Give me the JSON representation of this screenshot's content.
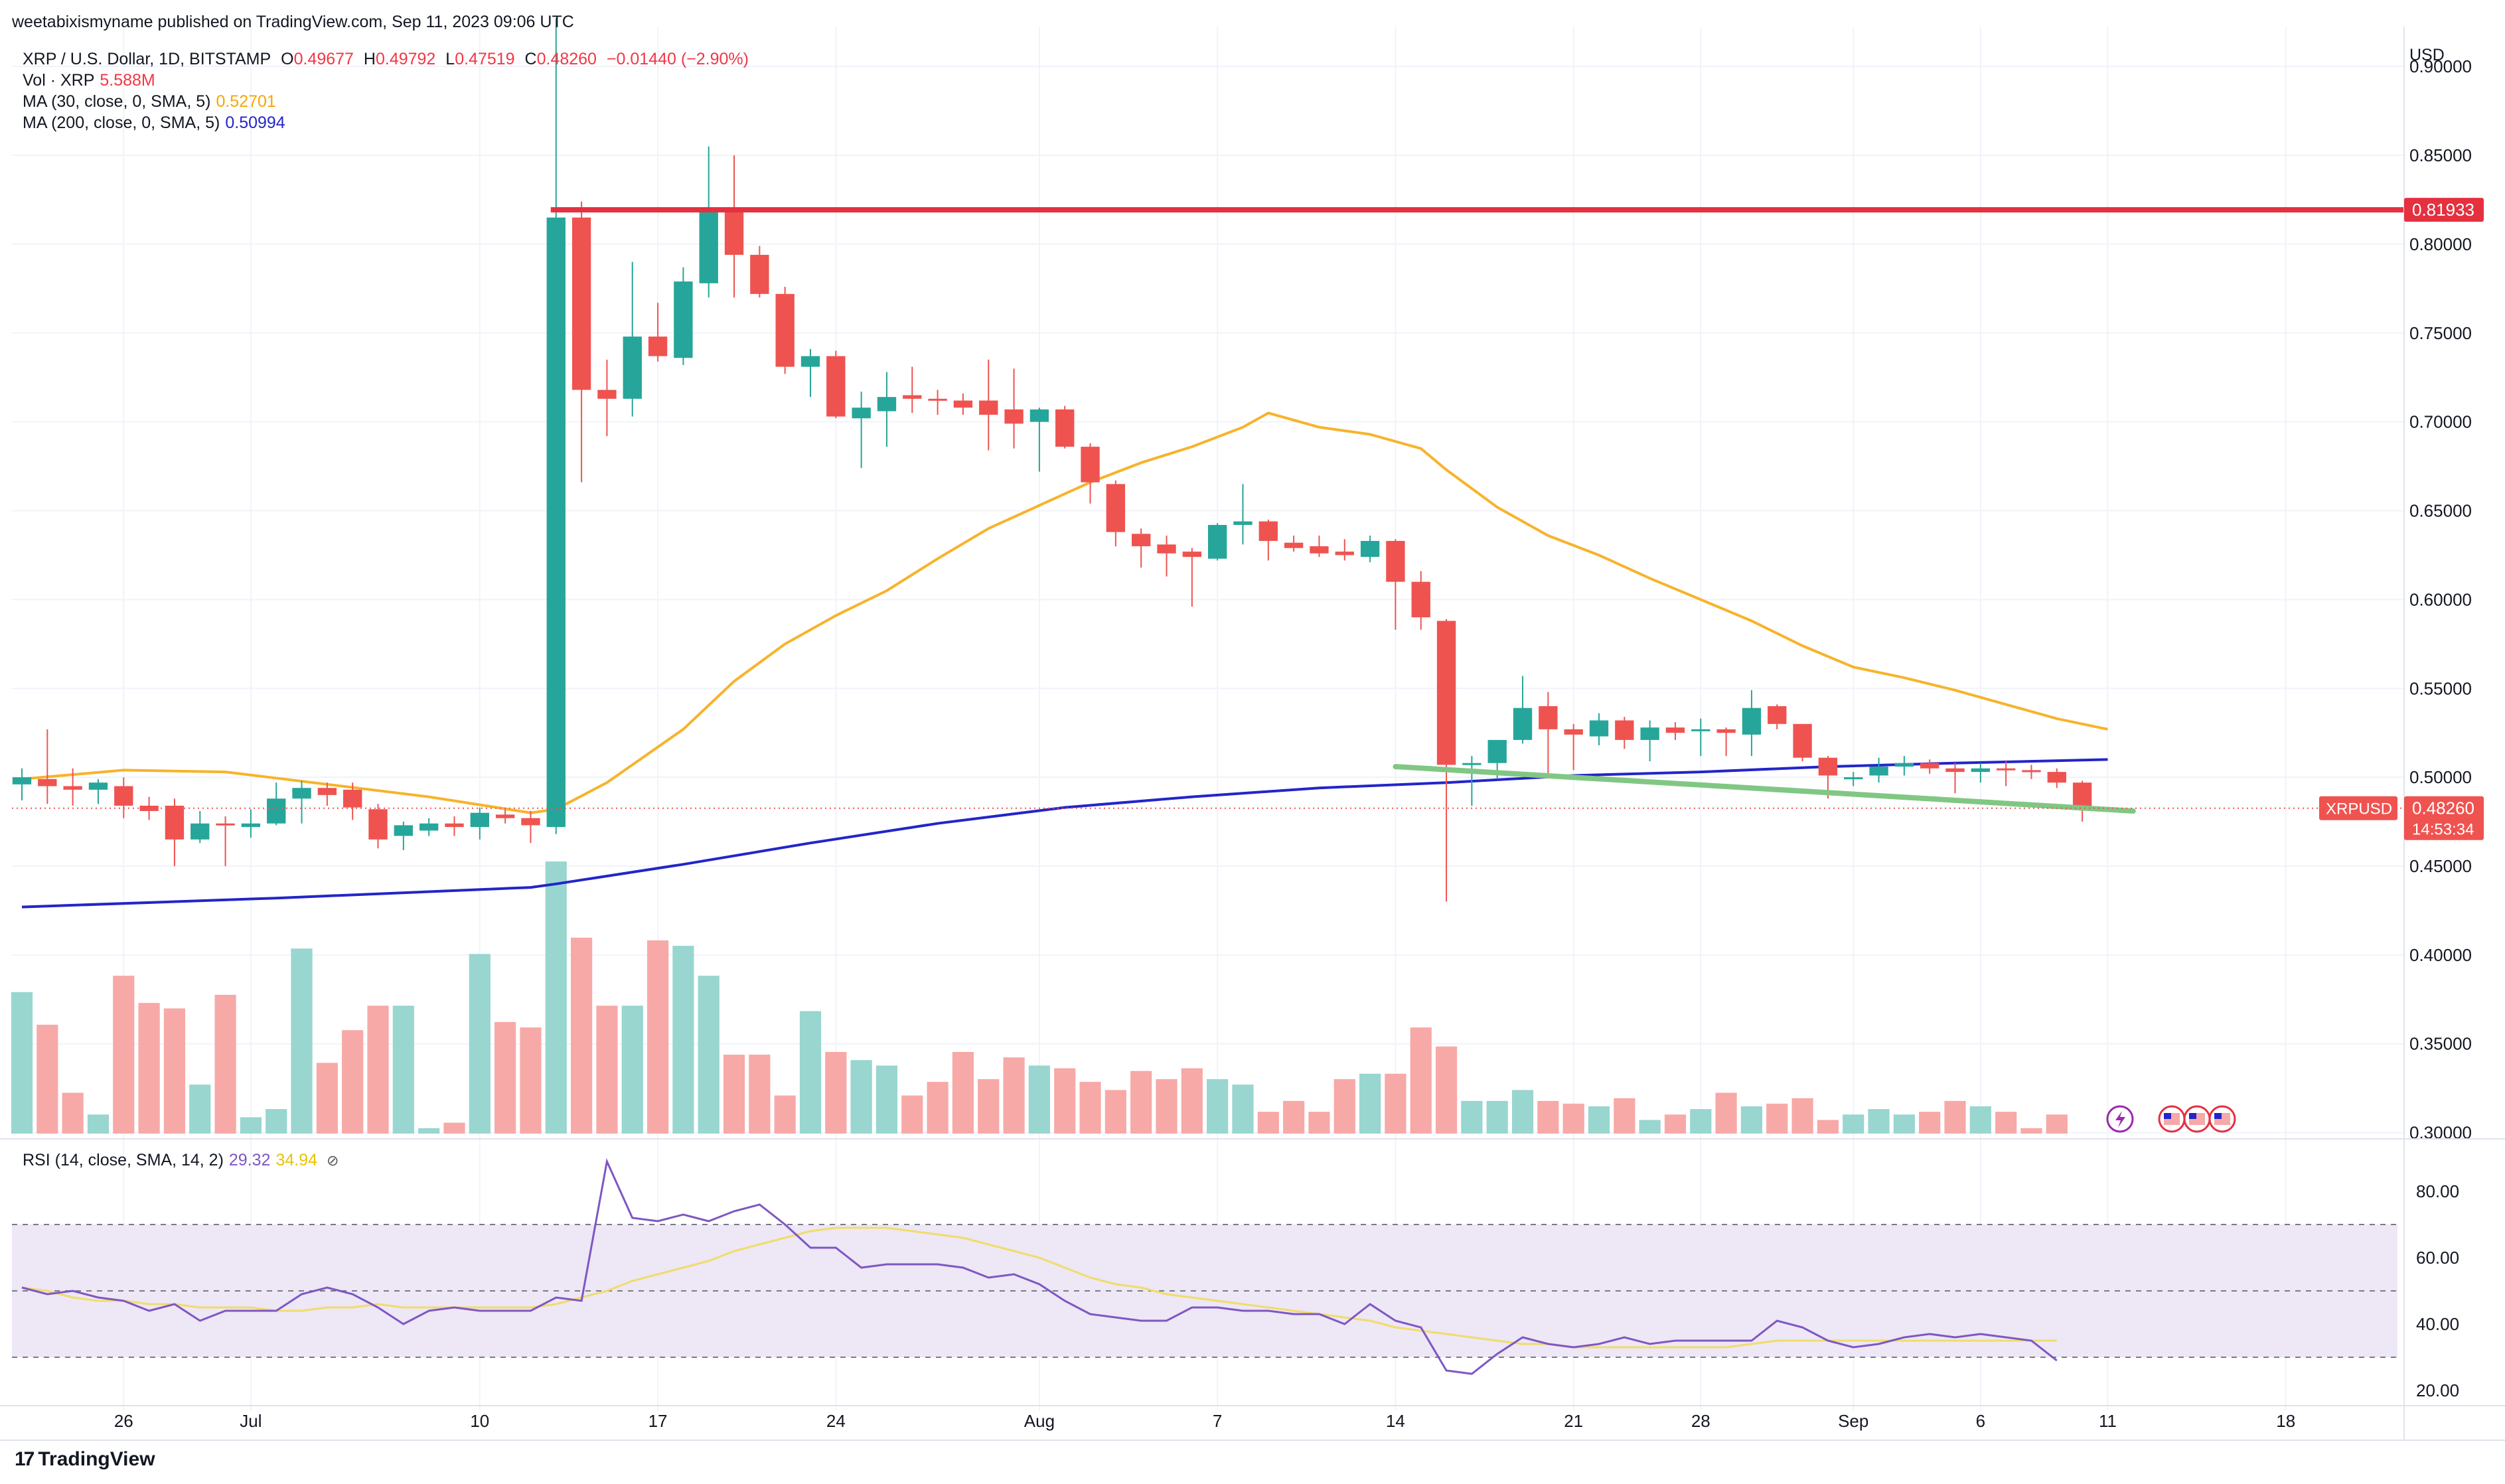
{
  "header": {
    "publisher": "weetabixismyname published on TradingView.com, Sep 11, 2023 09:06 UTC",
    "symbol": "XRP / U.S. Dollar, 1D, BITSTAMP",
    "ohlc": {
      "o_label": "O",
      "o": "0.49677",
      "h_label": "H",
      "h": "0.49792",
      "l_label": "L",
      "l": "0.47519",
      "c_label": "C",
      "c": "0.48260",
      "change": "−0.01440 (−2.90%)"
    },
    "vol_label": "Vol · XRP",
    "vol_value": "5.588M",
    "ma30_label": "MA (30, close, 0, SMA, 5)",
    "ma30_value": "0.52701",
    "ma200_label": "MA (200, close, 0, SMA, 5)",
    "ma200_value": "0.50994",
    "rsi_label": "RSI (14, close, SMA, 14, 2)",
    "rsi_value": "29.32",
    "rsi_sma_value": "34.94",
    "eye_icon": "⊘"
  },
  "currency": "USD",
  "brand": {
    "logo": "17",
    "name": "TradingView"
  },
  "colors": {
    "up": "#26a69a",
    "down": "#ef5350",
    "up_vol": "#98d6cf",
    "down_vol": "#f7a9a7",
    "ma30": "#f7b32b",
    "ma200": "#2325c9",
    "resistance": "#e53040",
    "support": "#81c784",
    "rsi": "#7e57c2",
    "rsi_sma": "#f1dc6a",
    "rsi_band": "#ede7f6"
  },
  "chart_data": {
    "type": "candlestick",
    "symbol": "XRPUSD",
    "interval": "1D",
    "ylim": [
      0.295,
      0.915
    ],
    "y_ticks": [
      "0.90000",
      "0.85000",
      "0.80000",
      "0.75000",
      "0.70000",
      "0.65000",
      "0.60000",
      "0.55000",
      "0.50000",
      "0.45000",
      "0.40000",
      "0.35000",
      "0.30000"
    ],
    "x_ticks": [
      {
        "label": "26",
        "index": 4
      },
      {
        "label": "Jul",
        "index": 9
      },
      {
        "label": "10",
        "index": 18
      },
      {
        "label": "17",
        "index": 25
      },
      {
        "label": "24",
        "index": 32
      },
      {
        "label": "Aug",
        "index": 40
      },
      {
        "label": "7",
        "index": 47
      },
      {
        "label": "14",
        "index": 54
      },
      {
        "label": "21",
        "index": 61
      },
      {
        "label": "28",
        "index": 66
      },
      {
        "label": "Sep",
        "index": 72
      },
      {
        "label": "6",
        "index": 77
      },
      {
        "label": "11",
        "index": 82
      },
      {
        "label": "18",
        "index": 89
      }
    ],
    "x_slots": 93,
    "candles": [
      {
        "o": 0.496,
        "h": 0.505,
        "l": 0.487,
        "c": 0.5
      },
      {
        "o": 0.499,
        "h": 0.527,
        "l": 0.485,
        "c": 0.495
      },
      {
        "o": 0.495,
        "h": 0.505,
        "l": 0.484,
        "c": 0.493
      },
      {
        "o": 0.493,
        "h": 0.499,
        "l": 0.485,
        "c": 0.497
      },
      {
        "o": 0.495,
        "h": 0.5,
        "l": 0.477,
        "c": 0.484
      },
      {
        "o": 0.484,
        "h": 0.489,
        "l": 0.476,
        "c": 0.481
      },
      {
        "o": 0.484,
        "h": 0.488,
        "l": 0.45,
        "c": 0.465
      },
      {
        "o": 0.465,
        "h": 0.481,
        "l": 0.463,
        "c": 0.474
      },
      {
        "o": 0.474,
        "h": 0.478,
        "l": 0.45,
        "c": 0.473
      },
      {
        "o": 0.472,
        "h": 0.482,
        "l": 0.466,
        "c": 0.474
      },
      {
        "o": 0.474,
        "h": 0.497,
        "l": 0.473,
        "c": 0.488
      },
      {
        "o": 0.488,
        "h": 0.498,
        "l": 0.474,
        "c": 0.494
      },
      {
        "o": 0.494,
        "h": 0.497,
        "l": 0.484,
        "c": 0.49
      },
      {
        "o": 0.493,
        "h": 0.497,
        "l": 0.476,
        "c": 0.483
      },
      {
        "o": 0.482,
        "h": 0.485,
        "l": 0.46,
        "c": 0.465
      },
      {
        "o": 0.467,
        "h": 0.475,
        "l": 0.459,
        "c": 0.473
      },
      {
        "o": 0.47,
        "h": 0.477,
        "l": 0.467,
        "c": 0.474
      },
      {
        "o": 0.474,
        "h": 0.478,
        "l": 0.467,
        "c": 0.472
      },
      {
        "o": 0.472,
        "h": 0.483,
        "l": 0.465,
        "c": 0.48
      },
      {
        "o": 0.479,
        "h": 0.482,
        "l": 0.474,
        "c": 0.477
      },
      {
        "o": 0.477,
        "h": 0.481,
        "l": 0.463,
        "c": 0.473
      },
      {
        "o": 0.472,
        "h": 0.927,
        "l": 0.468,
        "c": 0.815
      },
      {
        "o": 0.815,
        "h": 0.824,
        "l": 0.666,
        "c": 0.718
      },
      {
        "o": 0.718,
        "h": 0.735,
        "l": 0.692,
        "c": 0.713
      },
      {
        "o": 0.713,
        "h": 0.79,
        "l": 0.703,
        "c": 0.748
      },
      {
        "o": 0.748,
        "h": 0.767,
        "l": 0.734,
        "c": 0.737
      },
      {
        "o": 0.736,
        "h": 0.787,
        "l": 0.732,
        "c": 0.779
      },
      {
        "o": 0.778,
        "h": 0.855,
        "l": 0.77,
        "c": 0.819
      },
      {
        "o": 0.819,
        "h": 0.85,
        "l": 0.77,
        "c": 0.794
      },
      {
        "o": 0.794,
        "h": 0.799,
        "l": 0.77,
        "c": 0.772
      },
      {
        "o": 0.772,
        "h": 0.776,
        "l": 0.727,
        "c": 0.731
      },
      {
        "o": 0.731,
        "h": 0.741,
        "l": 0.714,
        "c": 0.737
      },
      {
        "o": 0.737,
        "h": 0.74,
        "l": 0.702,
        "c": 0.703
      },
      {
        "o": 0.702,
        "h": 0.717,
        "l": 0.674,
        "c": 0.708
      },
      {
        "o": 0.706,
        "h": 0.728,
        "l": 0.686,
        "c": 0.714
      },
      {
        "o": 0.715,
        "h": 0.731,
        "l": 0.705,
        "c": 0.713
      },
      {
        "o": 0.713,
        "h": 0.718,
        "l": 0.704,
        "c": 0.712
      },
      {
        "o": 0.712,
        "h": 0.716,
        "l": 0.704,
        "c": 0.708
      },
      {
        "o": 0.712,
        "h": 0.735,
        "l": 0.684,
        "c": 0.704
      },
      {
        "o": 0.707,
        "h": 0.73,
        "l": 0.685,
        "c": 0.699
      },
      {
        "o": 0.7,
        "h": 0.708,
        "l": 0.672,
        "c": 0.707
      },
      {
        "o": 0.707,
        "h": 0.709,
        "l": 0.685,
        "c": 0.686
      },
      {
        "o": 0.686,
        "h": 0.688,
        "l": 0.654,
        "c": 0.666
      },
      {
        "o": 0.665,
        "h": 0.667,
        "l": 0.63,
        "c": 0.638
      },
      {
        "o": 0.637,
        "h": 0.64,
        "l": 0.618,
        "c": 0.63
      },
      {
        "o": 0.631,
        "h": 0.636,
        "l": 0.613,
        "c": 0.626
      },
      {
        "o": 0.627,
        "h": 0.629,
        "l": 0.596,
        "c": 0.624
      },
      {
        "o": 0.623,
        "h": 0.643,
        "l": 0.622,
        "c": 0.642
      },
      {
        "o": 0.642,
        "h": 0.665,
        "l": 0.631,
        "c": 0.644
      },
      {
        "o": 0.644,
        "h": 0.645,
        "l": 0.622,
        "c": 0.633
      },
      {
        "o": 0.632,
        "h": 0.636,
        "l": 0.627,
        "c": 0.629
      },
      {
        "o": 0.63,
        "h": 0.636,
        "l": 0.624,
        "c": 0.626
      },
      {
        "o": 0.627,
        "h": 0.634,
        "l": 0.622,
        "c": 0.625
      },
      {
        "o": 0.624,
        "h": 0.636,
        "l": 0.621,
        "c": 0.633
      },
      {
        "o": 0.633,
        "h": 0.634,
        "l": 0.583,
        "c": 0.61
      },
      {
        "o": 0.61,
        "h": 0.616,
        "l": 0.583,
        "c": 0.59
      },
      {
        "o": 0.588,
        "h": 0.589,
        "l": 0.43,
        "c": 0.507
      },
      {
        "o": 0.507,
        "h": 0.512,
        "l": 0.484,
        "c": 0.508
      },
      {
        "o": 0.508,
        "h": 0.519,
        "l": 0.499,
        "c": 0.521
      },
      {
        "o": 0.521,
        "h": 0.557,
        "l": 0.519,
        "c": 0.539
      },
      {
        "o": 0.54,
        "h": 0.548,
        "l": 0.502,
        "c": 0.527
      },
      {
        "o": 0.527,
        "h": 0.53,
        "l": 0.504,
        "c": 0.524
      },
      {
        "o": 0.523,
        "h": 0.536,
        "l": 0.518,
        "c": 0.532
      },
      {
        "o": 0.532,
        "h": 0.534,
        "l": 0.516,
        "c": 0.521
      },
      {
        "o": 0.521,
        "h": 0.532,
        "l": 0.509,
        "c": 0.528
      },
      {
        "o": 0.528,
        "h": 0.531,
        "l": 0.521,
        "c": 0.525
      },
      {
        "o": 0.526,
        "h": 0.533,
        "l": 0.512,
        "c": 0.527
      },
      {
        "o": 0.527,
        "h": 0.528,
        "l": 0.512,
        "c": 0.525
      },
      {
        "o": 0.524,
        "h": 0.549,
        "l": 0.512,
        "c": 0.539
      },
      {
        "o": 0.54,
        "h": 0.541,
        "l": 0.527,
        "c": 0.53
      },
      {
        "o": 0.53,
        "h": 0.53,
        "l": 0.509,
        "c": 0.511
      },
      {
        "o": 0.511,
        "h": 0.512,
        "l": 0.488,
        "c": 0.501
      },
      {
        "o": 0.499,
        "h": 0.503,
        "l": 0.495,
        "c": 0.5
      },
      {
        "o": 0.501,
        "h": 0.511,
        "l": 0.497,
        "c": 0.506
      },
      {
        "o": 0.506,
        "h": 0.512,
        "l": 0.501,
        "c": 0.508
      },
      {
        "o": 0.508,
        "h": 0.51,
        "l": 0.502,
        "c": 0.505
      },
      {
        "o": 0.505,
        "h": 0.508,
        "l": 0.491,
        "c": 0.503
      },
      {
        "o": 0.503,
        "h": 0.508,
        "l": 0.497,
        "c": 0.505
      },
      {
        "o": 0.505,
        "h": 0.509,
        "l": 0.495,
        "c": 0.504
      },
      {
        "o": 0.504,
        "h": 0.507,
        "l": 0.499,
        "c": 0.503
      },
      {
        "o": 0.503,
        "h": 0.505,
        "l": 0.494,
        "c": 0.497
      },
      {
        "o": 0.497,
        "h": 0.498,
        "l": 0.475,
        "c": 0.483
      }
    ],
    "volume_relative": [
      0.52,
      0.4,
      0.15,
      0.07,
      0.58,
      0.48,
      0.46,
      0.18,
      0.51,
      0.06,
      0.09,
      0.68,
      0.26,
      0.38,
      0.47,
      0.47,
      0.02,
      0.04,
      0.66,
      0.41,
      0.39,
      1.0,
      0.72,
      0.47,
      0.47,
      0.71,
      0.69,
      0.58,
      0.29,
      0.29,
      0.14,
      0.45,
      0.3,
      0.27,
      0.25,
      0.14,
      0.19,
      0.3,
      0.2,
      0.28,
      0.25,
      0.24,
      0.19,
      0.16,
      0.23,
      0.2,
      0.24,
      0.2,
      0.18,
      0.08,
      0.12,
      0.08,
      0.2,
      0.22,
      0.22,
      0.39,
      0.32,
      0.12,
      0.12,
      0.16,
      0.12,
      0.11,
      0.1,
      0.13,
      0.05,
      0.07,
      0.09,
      0.15,
      0.1,
      0.11,
      0.13,
      0.05,
      0.07,
      0.09,
      0.07,
      0.08,
      0.12,
      0.1,
      0.08,
      0.02,
      0.07
    ],
    "ma30": [
      [
        0,
        0.499
      ],
      [
        4,
        0.504
      ],
      [
        8,
        0.503
      ],
      [
        12,
        0.496
      ],
      [
        16,
        0.489
      ],
      [
        20,
        0.48
      ],
      [
        21,
        0.482
      ],
      [
        23,
        0.497
      ],
      [
        26,
        0.527
      ],
      [
        28,
        0.554
      ],
      [
        30,
        0.575
      ],
      [
        32,
        0.591
      ],
      [
        34,
        0.605
      ],
      [
        36,
        0.623
      ],
      [
        38,
        0.64
      ],
      [
        40,
        0.653
      ],
      [
        42,
        0.666
      ],
      [
        44,
        0.677
      ],
      [
        46,
        0.686
      ],
      [
        48,
        0.697
      ],
      [
        49,
        0.705
      ],
      [
        51,
        0.697
      ],
      [
        53,
        0.693
      ],
      [
        55,
        0.685
      ],
      [
        56,
        0.673
      ],
      [
        58,
        0.652
      ],
      [
        60,
        0.636
      ],
      [
        62,
        0.625
      ],
      [
        64,
        0.612
      ],
      [
        66,
        0.6
      ],
      [
        68,
        0.588
      ],
      [
        70,
        0.574
      ],
      [
        72,
        0.562
      ],
      [
        74,
        0.556
      ],
      [
        76,
        0.549
      ],
      [
        78,
        0.541
      ],
      [
        80,
        0.533
      ],
      [
        82,
        0.527
      ]
    ],
    "ma200": [
      [
        0,
        0.427
      ],
      [
        10,
        0.432
      ],
      [
        20,
        0.438
      ],
      [
        21,
        0.44
      ],
      [
        26,
        0.451
      ],
      [
        31,
        0.463
      ],
      [
        36,
        0.474
      ],
      [
        41,
        0.483
      ],
      [
        46,
        0.489
      ],
      [
        51,
        0.494
      ],
      [
        56,
        0.497
      ],
      [
        61,
        0.501
      ],
      [
        66,
        0.503
      ],
      [
        71,
        0.506
      ],
      [
        76,
        0.508
      ],
      [
        82,
        0.51
      ]
    ],
    "resistance": {
      "price": 0.81933,
      "from_index": 21
    },
    "support_line": [
      [
        54,
        0.506
      ],
      [
        83,
        0.481
      ]
    ],
    "last_price": {
      "symbol_label": "XRPUSD",
      "value": "0.48260",
      "countdown": "14:53:34"
    },
    "resistance_label": "0.81933",
    "rsi": {
      "ylim": [
        17,
        92
      ],
      "bands": [
        30,
        50,
        70
      ],
      "y_ticks": [
        "80.00",
        "60.00",
        "40.00",
        "20.00"
      ],
      "values": [
        51,
        49,
        50,
        48,
        47,
        44,
        46,
        41,
        44,
        44,
        44,
        49,
        51,
        49,
        45,
        40,
        44,
        45,
        44,
        44,
        44,
        48,
        47,
        89,
        72,
        71,
        73,
        71,
        74,
        76,
        70,
        63,
        63,
        57,
        58,
        58,
        58,
        57,
        54,
        55,
        52,
        47,
        43,
        42,
        41,
        41,
        45,
        45,
        44,
        44,
        43,
        43,
        40,
        46,
        41,
        39,
        26,
        25,
        31,
        36,
        34,
        33,
        34,
        36,
        34,
        35,
        35,
        35,
        35,
        41,
        39,
        35,
        33,
        34,
        36,
        37,
        36,
        37,
        36,
        35,
        29
      ],
      "sma": [
        51,
        50,
        48,
        47,
        47,
        46,
        46,
        45,
        45,
        45,
        44,
        44,
        45,
        45,
        46,
        45,
        45,
        45,
        45,
        45,
        45,
        46,
        48,
        50,
        53,
        55,
        57,
        59,
        62,
        64,
        66,
        68,
        69,
        69,
        69,
        68,
        67,
        66,
        64,
        62,
        60,
        57,
        54,
        52,
        51,
        49,
        48,
        47,
        46,
        45,
        44,
        43,
        42,
        41,
        39,
        38,
        37,
        36,
        35,
        34,
        34,
        33,
        33,
        33,
        33,
        33,
        33,
        33,
        34,
        35,
        35,
        35,
        35,
        35,
        35,
        35,
        35,
        35,
        35,
        35,
        35
      ]
    }
  }
}
